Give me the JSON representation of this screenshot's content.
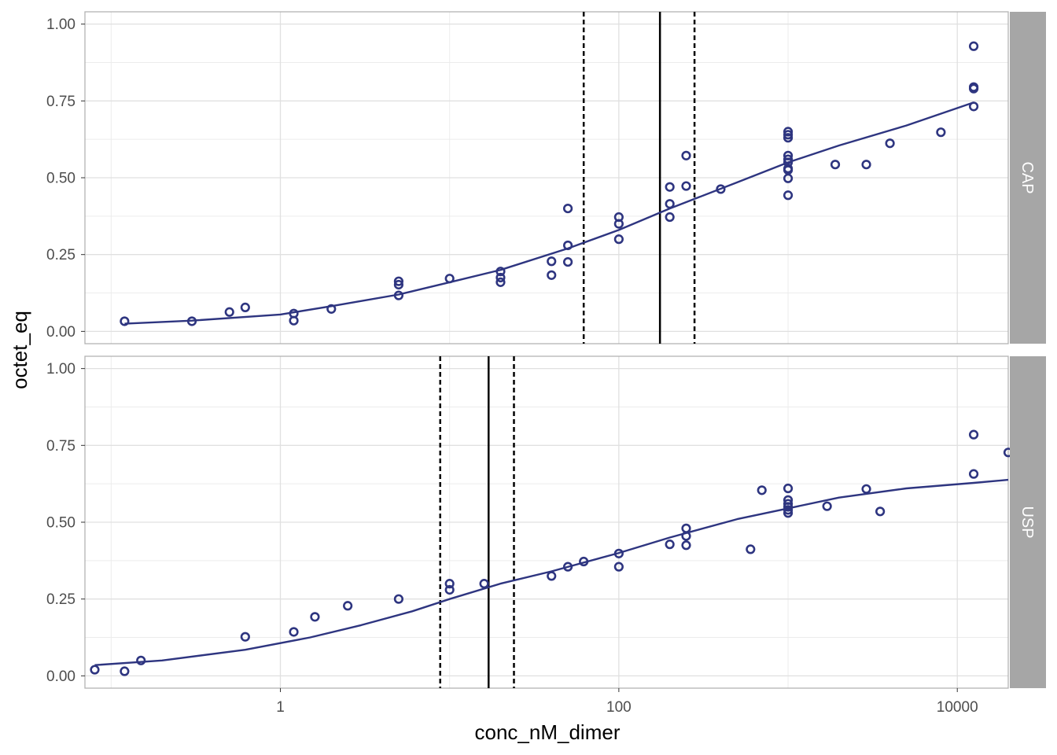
{
  "chart_data": {
    "type": "scatter",
    "xlabel": "conc_nM_dimer",
    "ylabel": "octet_eq",
    "x_scale": "log10",
    "xlim": [
      0.07,
      20000
    ],
    "ylim": [
      -0.04,
      1.04
    ],
    "x_ticks": [
      1,
      100,
      10000
    ],
    "x_tick_labels": [
      "1",
      "100",
      "10000"
    ],
    "y_ticks": [
      0,
      0.25,
      0.5,
      0.75,
      1
    ],
    "y_tick_labels": [
      "0.00",
      "0.25",
      "0.50",
      "0.75",
      "1.00"
    ],
    "grid": true,
    "colors": {
      "points": "#2e3580",
      "fit": "#2e3580",
      "vline": "#000000",
      "strip_bg": "#a6a6a6",
      "strip_text": "#ffffff",
      "grid": "#e0e0e0",
      "panel_border": "#b3b3b3"
    },
    "panels": [
      {
        "strip": "CAP",
        "points": [
          [
            0.12,
            0.033
          ],
          [
            0.3,
            0.033
          ],
          [
            0.5,
            0.063
          ],
          [
            0.62,
            0.078
          ],
          [
            1.2,
            0.058
          ],
          [
            1.2,
            0.035
          ],
          [
            2.0,
            0.073
          ],
          [
            5.0,
            0.163
          ],
          [
            5.0,
            0.152
          ],
          [
            5.0,
            0.117
          ],
          [
            10.0,
            0.172
          ],
          [
            20.0,
            0.195
          ],
          [
            20.0,
            0.175
          ],
          [
            20.0,
            0.16
          ],
          [
            40.0,
            0.228
          ],
          [
            40.0,
            0.183
          ],
          [
            50.0,
            0.4
          ],
          [
            50.0,
            0.28
          ],
          [
            50.0,
            0.226
          ],
          [
            100.0,
            0.372
          ],
          [
            100.0,
            0.35
          ],
          [
            100.0,
            0.3
          ],
          [
            200.0,
            0.47
          ],
          [
            200.0,
            0.415
          ],
          [
            200.0,
            0.372
          ],
          [
            250.0,
            0.572
          ],
          [
            250.0,
            0.473
          ],
          [
            400.0,
            0.463
          ],
          [
            1000.0,
            0.65
          ],
          [
            1000.0,
            0.64
          ],
          [
            1000.0,
            0.63
          ],
          [
            1000.0,
            0.572
          ],
          [
            1000.0,
            0.56
          ],
          [
            1000.0,
            0.55
          ],
          [
            1000.0,
            0.53
          ],
          [
            1000.0,
            0.525
          ],
          [
            1000.0,
            0.498
          ],
          [
            1000.0,
            0.443
          ],
          [
            1900.0,
            0.543
          ],
          [
            2900.0,
            0.543
          ],
          [
            4000.0,
            0.612
          ],
          [
            8000.0,
            0.648
          ],
          [
            12500.0,
            0.928
          ],
          [
            12500.0,
            0.795
          ],
          [
            12500.0,
            0.79
          ],
          [
            12500.0,
            0.732
          ]
        ],
        "fit": [
          [
            0.12,
            0.025
          ],
          [
            0.3,
            0.035
          ],
          [
            1.0,
            0.055
          ],
          [
            2.0,
            0.082
          ],
          [
            5.0,
            0.12
          ],
          [
            10.0,
            0.16
          ],
          [
            20.0,
            0.2
          ],
          [
            50.0,
            0.27
          ],
          [
            100.0,
            0.33
          ],
          [
            200.0,
            0.4
          ],
          [
            500.0,
            0.485
          ],
          [
            1000.0,
            0.55
          ],
          [
            2000.0,
            0.605
          ],
          [
            5000.0,
            0.67
          ],
          [
            12500.0,
            0.745
          ]
        ],
        "ec50": 175,
        "ci": [
          62,
          280
        ]
      },
      {
        "strip": "USP",
        "points": [
          [
            0.08,
            0.02
          ],
          [
            0.12,
            0.015
          ],
          [
            0.15,
            0.05
          ],
          [
            0.62,
            0.127
          ],
          [
            1.2,
            0.143
          ],
          [
            1.6,
            0.192
          ],
          [
            2.5,
            0.228
          ],
          [
            5.0,
            0.25
          ],
          [
            10.0,
            0.3
          ],
          [
            10.0,
            0.28
          ],
          [
            16.0,
            0.3
          ],
          [
            40.0,
            0.325
          ],
          [
            50.0,
            0.355
          ],
          [
            62.0,
            0.372
          ],
          [
            100.0,
            0.398
          ],
          [
            100.0,
            0.355
          ],
          [
            200.0,
            0.428
          ],
          [
            250.0,
            0.48
          ],
          [
            250.0,
            0.455
          ],
          [
            250.0,
            0.425
          ],
          [
            600.0,
            0.412
          ],
          [
            700.0,
            0.604
          ],
          [
            1000.0,
            0.61
          ],
          [
            1000.0,
            0.572
          ],
          [
            1000.0,
            0.56
          ],
          [
            1000.0,
            0.55
          ],
          [
            1000.0,
            0.54
          ],
          [
            1000.0,
            0.53
          ],
          [
            1700.0,
            0.552
          ],
          [
            2900.0,
            0.608
          ],
          [
            3500.0,
            0.535
          ],
          [
            12500.0,
            0.785
          ],
          [
            12500.0,
            0.657
          ],
          [
            20000.0,
            0.727
          ]
        ],
        "fit": [
          [
            0.08,
            0.035
          ],
          [
            0.2,
            0.05
          ],
          [
            0.62,
            0.085
          ],
          [
            1.5,
            0.125
          ],
          [
            3.0,
            0.165
          ],
          [
            6.0,
            0.21
          ],
          [
            10.0,
            0.25
          ],
          [
            20.0,
            0.3
          ],
          [
            40.0,
            0.34
          ],
          [
            100.0,
            0.4
          ],
          [
            200.0,
            0.45
          ],
          [
            500.0,
            0.51
          ],
          [
            1000.0,
            0.545
          ],
          [
            2000.0,
            0.58
          ],
          [
            5000.0,
            0.61
          ],
          [
            12500.0,
            0.628
          ],
          [
            20000.0,
            0.638
          ]
        ],
        "ec50": 17,
        "ci": [
          8.8,
          24
        ]
      }
    ]
  }
}
